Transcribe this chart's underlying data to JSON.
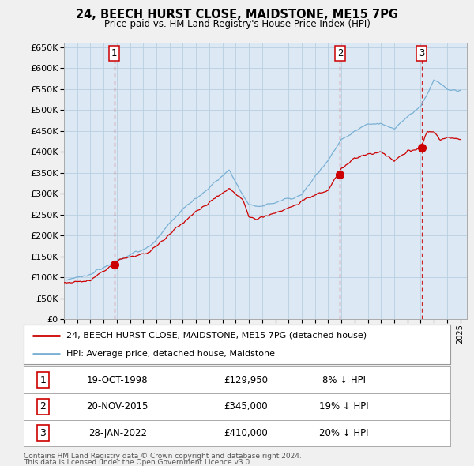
{
  "title_line1": "24, BEECH HURST CLOSE, MAIDSTONE, ME15 7PG",
  "title_line2": "Price paid vs. HM Land Registry's House Price Index (HPI)",
  "ylim": [
    0,
    660000
  ],
  "ytick_step": 50000,
  "bg_color": "#f0f0f0",
  "plot_bg_color": "#dce9f5",
  "grid_color": "#b8cfe0",
  "red_line_color": "#cc0000",
  "blue_line_color": "#7ab0d4",
  "legend_label_red": "24, BEECH HURST CLOSE, MAIDSTONE, ME15 7PG (detached house)",
  "legend_label_blue": "HPI: Average price, detached house, Maidstone",
  "transactions": [
    {
      "num": 1,
      "date": "19-OCT-1998",
      "price": 129950,
      "pct": "8%",
      "dir": "↓"
    },
    {
      "num": 2,
      "date": "20-NOV-2015",
      "price": 345000,
      "pct": "19%",
      "dir": "↓"
    },
    {
      "num": 3,
      "date": "28-JAN-2022",
      "price": 410000,
      "pct": "20%",
      "dir": "↓"
    }
  ],
  "footer_line1": "Contains HM Land Registry data © Crown copyright and database right 2024.",
  "footer_line2": "This data is licensed under the Open Government Licence v3.0.",
  "vline_color": "#cc0000",
  "marker_color": "#cc0000",
  "sale1_year": 1998.8,
  "sale2_year": 2015.9,
  "sale3_year": 2022.08,
  "sale1_price": 129950,
  "sale2_price": 345000,
  "sale3_price": 410000
}
